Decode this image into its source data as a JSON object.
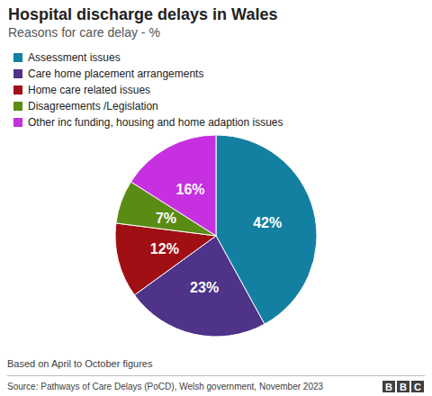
{
  "chart_data": {
    "type": "pie",
    "title": "Hospital discharge delays in Wales",
    "subtitle": "Reasons for care delay - %",
    "categories": [
      "Assessment issues",
      "Care home placement arrangements",
      "Home care related issues",
      "Disagreements /Legislation",
      "Other inc funding, housing and home adaption issues"
    ],
    "values": [
      42,
      23,
      12,
      7,
      16
    ],
    "value_labels": [
      "42%",
      "23%",
      "12%",
      "7%",
      "16%"
    ],
    "colors": [
      "#1380a1",
      "#4e3388",
      "#a00f14",
      "#5a8c14",
      "#c630e0"
    ],
    "data_labels": true,
    "legend": "top-left",
    "note": "Based on April to October figures",
    "source": "Source: Pathways of Care Delays (PoCD), Welsh government, November 2023",
    "logo": "BBC"
  }
}
